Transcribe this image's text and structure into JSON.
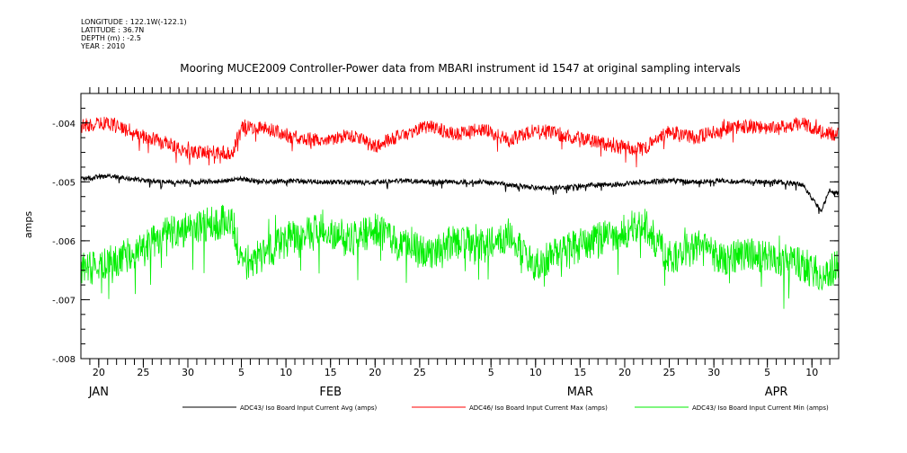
{
  "meta": {
    "longitude": "LONGITUDE : 122.1W(-122.1)",
    "latitude": "LATITUDE : 36.7N",
    "depth": "DEPTH (m) : -2.5",
    "year": "YEAR : 2010"
  },
  "chart_data": {
    "type": "line",
    "title": "Mooring MUCE2009 Controller-Power data from MBARI instrument id 1547 at original sampling intervals",
    "ylabel": "amps",
    "xlabel": "",
    "ylim": [
      -0.008,
      -0.0035
    ],
    "yticks": [
      {
        "value": -0.004,
        "label": "-.004"
      },
      {
        "value": -0.005,
        "label": "-.005"
      },
      {
        "value": -0.006,
        "label": "-.006"
      },
      {
        "value": -0.007,
        "label": "-.007"
      },
      {
        "value": -0.008,
        "label": "-.008"
      }
    ],
    "xlim": [
      "2010-01-18",
      "2010-04-13"
    ],
    "xticks": [
      {
        "date": "2010-01-20",
        "label": "20"
      },
      {
        "date": "2010-01-25",
        "label": "25"
      },
      {
        "date": "2010-01-30",
        "label": "30"
      },
      {
        "date": "2010-02-05",
        "label": "5"
      },
      {
        "date": "2010-02-10",
        "label": "10"
      },
      {
        "date": "2010-02-15",
        "label": "15"
      },
      {
        "date": "2010-02-20",
        "label": "20"
      },
      {
        "date": "2010-02-25",
        "label": "25"
      },
      {
        "date": "2010-03-05",
        "label": "5"
      },
      {
        "date": "2010-03-10",
        "label": "10"
      },
      {
        "date": "2010-03-15",
        "label": "15"
      },
      {
        "date": "2010-03-20",
        "label": "20"
      },
      {
        "date": "2010-03-25",
        "label": "25"
      },
      {
        "date": "2010-03-30",
        "label": "30"
      },
      {
        "date": "2010-04-05",
        "label": "5"
      },
      {
        "date": "2010-04-10",
        "label": "10"
      }
    ],
    "months": [
      {
        "date": "2010-01-20",
        "label": "JAN"
      },
      {
        "date": "2010-02-15",
        "label": "FEB"
      },
      {
        "date": "2010-03-15",
        "label": "MAR"
      },
      {
        "date": "2010-04-06",
        "label": "APR"
      }
    ],
    "series": [
      {
        "name": "ADC43/ Iso Board Input Current Avg (amps)",
        "color": "#000000",
        "points": [
          [
            "2010-01-18",
            -0.00495
          ],
          [
            "2010-01-21",
            -0.0049
          ],
          [
            "2010-01-24",
            -0.00495
          ],
          [
            "2010-01-27",
            -0.005
          ],
          [
            "2010-01-30",
            -0.005
          ],
          [
            "2010-02-02",
            -0.005
          ],
          [
            "2010-02-05",
            -0.00495
          ],
          [
            "2010-02-08",
            -0.005
          ],
          [
            "2010-02-11",
            -0.00498
          ],
          [
            "2010-02-14",
            -0.005
          ],
          [
            "2010-02-17",
            -0.005
          ],
          [
            "2010-02-20",
            -0.005
          ],
          [
            "2010-02-23",
            -0.00498
          ],
          [
            "2010-02-26",
            -0.005
          ],
          [
            "2010-03-01",
            -0.005
          ],
          [
            "2010-03-04",
            -0.005
          ],
          [
            "2010-03-07",
            -0.00505
          ],
          [
            "2010-03-10",
            -0.0051
          ],
          [
            "2010-03-13",
            -0.0051
          ],
          [
            "2010-03-16",
            -0.00505
          ],
          [
            "2010-03-19",
            -0.00505
          ],
          [
            "2010-03-22",
            -0.005
          ],
          [
            "2010-03-25",
            -0.00498
          ],
          [
            "2010-03-28",
            -0.005
          ],
          [
            "2010-03-31",
            -0.00498
          ],
          [
            "2010-04-03",
            -0.005
          ],
          [
            "2010-04-06",
            -0.005
          ],
          [
            "2010-04-09",
            -0.00505
          ],
          [
            "2010-04-11",
            -0.0055
          ],
          [
            "2010-04-12",
            -0.00515
          ],
          [
            "2010-04-13",
            -0.0052
          ]
        ]
      },
      {
        "name": "ADC46/ Iso Board Input Current Max (amps)",
        "color": "#ff0000",
        "points": [
          [
            "2010-01-18",
            -0.00405
          ],
          [
            "2010-01-21",
            -0.004
          ],
          [
            "2010-01-24",
            -0.0042
          ],
          [
            "2010-01-27",
            -0.0043
          ],
          [
            "2010-01-30",
            -0.0045
          ],
          [
            "2010-02-02",
            -0.0045
          ],
          [
            "2010-02-04",
            -0.0045
          ],
          [
            "2010-02-05",
            -0.00405
          ],
          [
            "2010-02-08",
            -0.0041
          ],
          [
            "2010-02-11",
            -0.00425
          ],
          [
            "2010-02-14",
            -0.0043
          ],
          [
            "2010-02-17",
            -0.0042
          ],
          [
            "2010-02-20",
            -0.0044
          ],
          [
            "2010-02-23",
            -0.0042
          ],
          [
            "2010-02-26",
            -0.00405
          ],
          [
            "2010-03-01",
            -0.0042
          ],
          [
            "2010-03-04",
            -0.0041
          ],
          [
            "2010-03-07",
            -0.0043
          ],
          [
            "2010-03-10",
            -0.0041
          ],
          [
            "2010-03-13",
            -0.0042
          ],
          [
            "2010-03-16",
            -0.0043
          ],
          [
            "2010-03-19",
            -0.0044
          ],
          [
            "2010-03-22",
            -0.00445
          ],
          [
            "2010-03-25",
            -0.00415
          ],
          [
            "2010-03-28",
            -0.00425
          ],
          [
            "2010-03-31",
            -0.0041
          ],
          [
            "2010-04-03",
            -0.00405
          ],
          [
            "2010-04-06",
            -0.0041
          ],
          [
            "2010-04-09",
            -0.004
          ],
          [
            "2010-04-11",
            -0.00415
          ],
          [
            "2010-04-13",
            -0.0042
          ]
        ]
      },
      {
        "name": "ADC43/ Iso Board Input Current Min (amps)",
        "color": "#00ee00",
        "points": [
          [
            "2010-01-18",
            -0.0065
          ],
          [
            "2010-01-21",
            -0.0064
          ],
          [
            "2010-01-24",
            -0.0062
          ],
          [
            "2010-01-27",
            -0.0059
          ],
          [
            "2010-01-30",
            -0.0058
          ],
          [
            "2010-02-02",
            -0.0057
          ],
          [
            "2010-02-04",
            -0.00565
          ],
          [
            "2010-02-05",
            -0.0064
          ],
          [
            "2010-02-08",
            -0.0062
          ],
          [
            "2010-02-11",
            -0.0059
          ],
          [
            "2010-02-14",
            -0.0058
          ],
          [
            "2010-02-17",
            -0.006
          ],
          [
            "2010-02-20",
            -0.0058
          ],
          [
            "2010-02-23",
            -0.0061
          ],
          [
            "2010-02-26",
            -0.0062
          ],
          [
            "2010-03-01",
            -0.006
          ],
          [
            "2010-03-04",
            -0.0061
          ],
          [
            "2010-03-07",
            -0.0059
          ],
          [
            "2010-03-10",
            -0.0064
          ],
          [
            "2010-03-13",
            -0.0062
          ],
          [
            "2010-03-16",
            -0.006
          ],
          [
            "2010-03-19",
            -0.0059
          ],
          [
            "2010-03-22",
            -0.0057
          ],
          [
            "2010-03-25",
            -0.0063
          ],
          [
            "2010-03-28",
            -0.0061
          ],
          [
            "2010-03-31",
            -0.0063
          ],
          [
            "2010-04-03",
            -0.0062
          ],
          [
            "2010-04-06",
            -0.0063
          ],
          [
            "2010-04-09",
            -0.0064
          ],
          [
            "2010-04-11",
            -0.0066
          ],
          [
            "2010-04-13",
            -0.0064
          ]
        ]
      }
    ]
  }
}
